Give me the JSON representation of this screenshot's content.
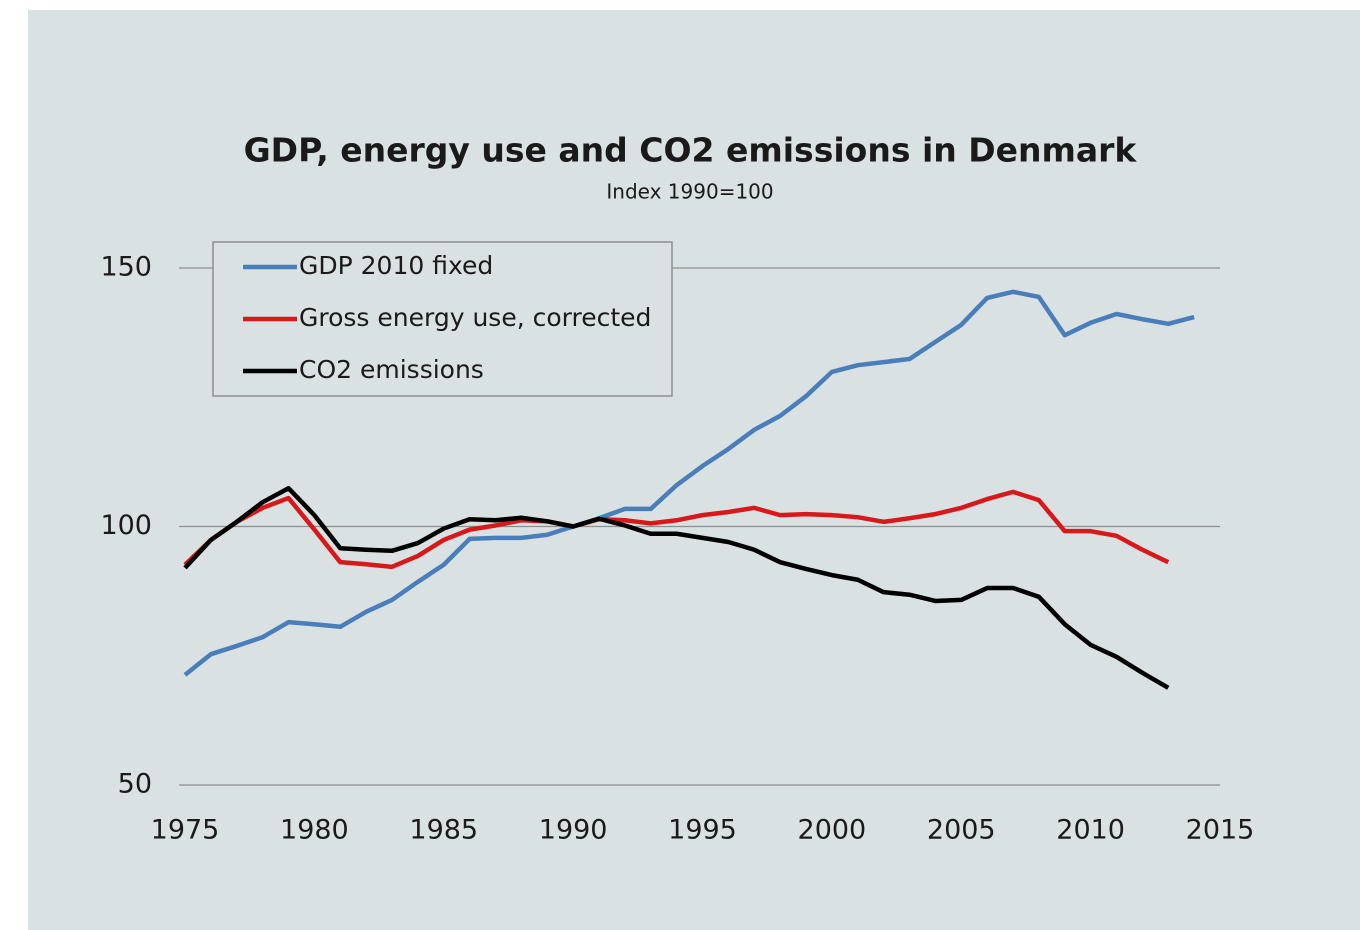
{
  "chart_data": {
    "type": "line",
    "title": "GDP, energy use and CO2 emissions in Denmark",
    "subtitle": "Index 1990=100",
    "x": [
      1975,
      1976,
      1977,
      1978,
      1979,
      1980,
      1981,
      1982,
      1983,
      1984,
      1985,
      1986,
      1987,
      1988,
      1989,
      1990,
      1991,
      1992,
      1993,
      1994,
      1995,
      1996,
      1997,
      1998,
      1999,
      2000,
      2001,
      2002,
      2003,
      2004,
      2005,
      2006,
      2007,
      2008,
      2009,
      2010,
      2011,
      2012,
      2013,
      2014
    ],
    "series": [
      {
        "name": "GDP 2010 fixed",
        "color": "#4a7ebb",
        "values": [
          71.3,
          75.3,
          76.9,
          78.6,
          81.5,
          81.1,
          80.6,
          83.5,
          85.8,
          89.3,
          92.6,
          97.6,
          97.8,
          97.8,
          98.4,
          100,
          101.6,
          103.4,
          103.4,
          108,
          111.7,
          115,
          118.7,
          121.4,
          125.2,
          129.9,
          131.2,
          131.8,
          132.4,
          135.7,
          139,
          144.2,
          145.4,
          144.4,
          137,
          139.4,
          141.1,
          140.1,
          139.2,
          140.5
        ]
      },
      {
        "name": "Gross energy use, corrected",
        "color": "#d7191c",
        "values": [
          92.6,
          97.4,
          100.9,
          103.6,
          105.5,
          99.4,
          93.1,
          92.7,
          92.2,
          94.3,
          97.4,
          99.4,
          100.2,
          101.2,
          101,
          100,
          101.4,
          101.2,
          100.6,
          101.2,
          102.2,
          102.8,
          103.6,
          102.2,
          102.4,
          102.2,
          101.8,
          100.9,
          101.6,
          102.4,
          103.6,
          105.3,
          106.7,
          105.1,
          99.1,
          99.1,
          98.2,
          95.5,
          93.1,
          null
        ]
      },
      {
        "name": "CO2 emissions",
        "color": "#000000",
        "values": [
          92,
          97.4,
          100.9,
          104.7,
          107.4,
          102.2,
          95.8,
          95.5,
          95.3,
          96.8,
          99.6,
          101.4,
          101.2,
          101.7,
          101,
          100,
          101.5,
          100.2,
          98.6,
          98.6,
          97.8,
          97,
          95.5,
          93.1,
          91.8,
          90.6,
          89.7,
          87.3,
          86.8,
          85.6,
          85.8,
          88.1,
          88.1,
          86.4,
          81.1,
          77.1,
          74.8,
          71.7,
          68.8,
          null
        ]
      }
    ],
    "xlim": [
      1975,
      2015
    ],
    "xticks": [
      1975,
      1980,
      1985,
      1990,
      1995,
      2000,
      2005,
      2010,
      2015
    ],
    "ylim": [
      50,
      150
    ],
    "yticks": [
      50,
      100,
      150
    ],
    "grid": true,
    "legend": "upper left"
  }
}
